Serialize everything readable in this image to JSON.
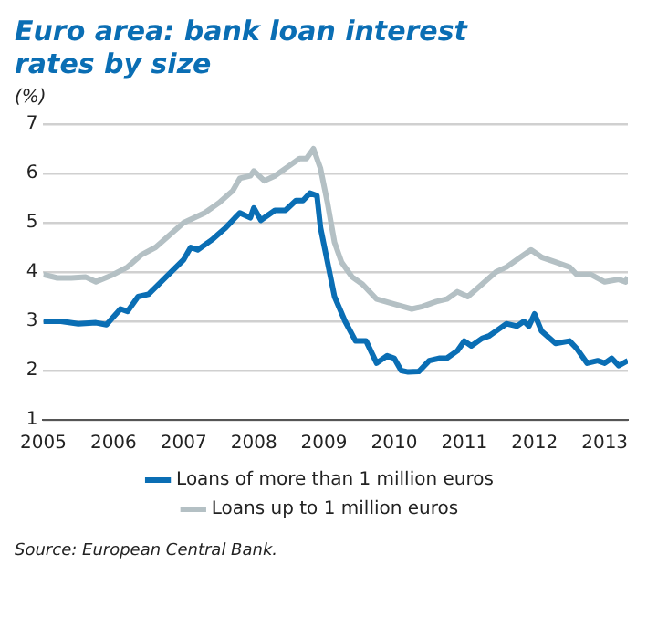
{
  "chart_data": {
    "type": "line",
    "title": "Euro area: bank loan interest rates by size",
    "ylabel": "(%)",
    "annotations": [
      "Source: European Central Bank."
    ],
    "xlim": [
      2005,
      2013.33
    ],
    "xticks": [
      2005,
      2006,
      2007,
      2008,
      2009,
      2010,
      2011,
      2012,
      2013
    ],
    "ylim": [
      1,
      7
    ],
    "yticks": [
      1,
      2,
      3,
      4,
      5,
      6,
      7
    ],
    "grid": "y",
    "legend": "bottom",
    "marker": "none",
    "line_style": "solid",
    "series": [
      {
        "name": "Loans of more than 1 million euros",
        "color": "#0a6eb4",
        "x": [
          2005,
          2005.25,
          2005.5,
          2005.75,
          2005.9,
          2006.1,
          2006.2,
          2006.35,
          2006.5,
          2006.75,
          2007,
          2007.1,
          2007.2,
          2007.4,
          2007.6,
          2007.8,
          2007.95,
          2008,
          2008.1,
          2008.3,
          2008.45,
          2008.6,
          2008.7,
          2008.8,
          2008.9,
          2008.95,
          2009.05,
          2009.15,
          2009.3,
          2009.45,
          2009.6,
          2009.75,
          2009.9,
          2010,
          2010.1,
          2010.2,
          2010.35,
          2010.5,
          2010.65,
          2010.75,
          2010.9,
          2011,
          2011.1,
          2011.25,
          2011.35,
          2011.5,
          2011.6,
          2011.75,
          2011.85,
          2011.92,
          2012,
          2012.1,
          2012.3,
          2012.5,
          2012.6,
          2012.75,
          2012.9,
          2013,
          2013.1,
          2013.2,
          2013.33
        ],
        "values": [
          3.0,
          3.0,
          2.95,
          2.97,
          2.93,
          3.25,
          3.2,
          3.5,
          3.55,
          3.9,
          4.25,
          4.5,
          4.45,
          4.65,
          4.9,
          5.2,
          5.1,
          5.3,
          5.05,
          5.25,
          5.25,
          5.45,
          5.45,
          5.6,
          5.55,
          4.9,
          4.2,
          3.5,
          3.0,
          2.6,
          2.6,
          2.15,
          2.3,
          2.25,
          2.0,
          1.97,
          1.98,
          2.2,
          2.25,
          2.25,
          2.4,
          2.6,
          2.5,
          2.65,
          2.7,
          2.85,
          2.95,
          2.9,
          3.0,
          2.9,
          3.15,
          2.8,
          2.55,
          2.6,
          2.45,
          2.15,
          2.2,
          2.15,
          2.25,
          2.1,
          2.2
        ]
      },
      {
        "name": "Loans up to 1 million euros",
        "color": "#b4c0c4",
        "x": [
          2005,
          2005.2,
          2005.4,
          2005.6,
          2005.75,
          2006,
          2006.2,
          2006.4,
          2006.6,
          2006.8,
          2007,
          2007.3,
          2007.5,
          2007.7,
          2007.8,
          2007.95,
          2008,
          2008.15,
          2008.3,
          2008.5,
          2008.65,
          2008.75,
          2008.85,
          2008.95,
          2009.05,
          2009.15,
          2009.25,
          2009.4,
          2009.55,
          2009.75,
          2010,
          2010.25,
          2010.4,
          2010.6,
          2010.75,
          2010.9,
          2011.05,
          2011.25,
          2011.45,
          2011.6,
          2011.8,
          2011.95,
          2012.1,
          2012.3,
          2012.5,
          2012.6,
          2012.8,
          2013,
          2013.2,
          2013.3,
          2013.33
        ],
        "values": [
          3.95,
          3.88,
          3.88,
          3.9,
          3.8,
          3.95,
          4.1,
          4.35,
          4.5,
          4.75,
          5.0,
          5.2,
          5.4,
          5.65,
          5.9,
          5.95,
          6.05,
          5.85,
          5.95,
          6.15,
          6.3,
          6.3,
          6.5,
          6.1,
          5.4,
          4.6,
          4.2,
          3.9,
          3.75,
          3.45,
          3.35,
          3.25,
          3.3,
          3.4,
          3.45,
          3.6,
          3.5,
          3.75,
          4.0,
          4.1,
          4.3,
          4.45,
          4.3,
          4.2,
          4.1,
          3.95,
          3.95,
          3.8,
          3.85,
          3.8,
          3.9
        ]
      }
    ]
  }
}
